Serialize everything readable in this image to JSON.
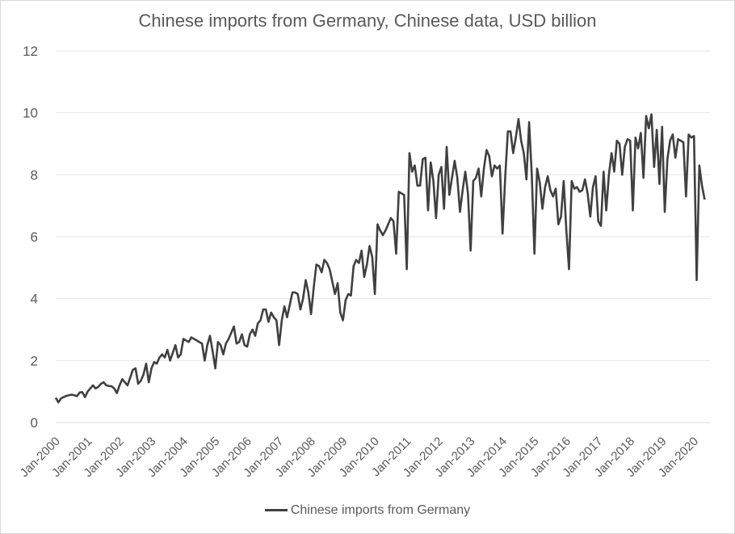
{
  "chart_data": {
    "type": "line",
    "title": "Chinese imports from Germany, Chinese data, USD billion",
    "xlabel": "",
    "ylabel": "",
    "ylim": [
      0,
      12
    ],
    "yticks": [
      0,
      2,
      4,
      6,
      8,
      10,
      12
    ],
    "grid": true,
    "legend_position": "bottom",
    "x_tick_labels": [
      "Jan-2000",
      "Jan-2001",
      "Jan-2002",
      "Jan-2003",
      "Jan-2004",
      "Jan-2005",
      "Jan-2006",
      "Jan-2007",
      "Jan-2008",
      "Jan-2009",
      "Jan-2010",
      "Jan-2011",
      "Jan-2012",
      "Jan-2013",
      "Jan-2014",
      "Jan-2015",
      "Jan-2016",
      "Jan-2017",
      "Jan-2018",
      "Jan-2019",
      "Jan-2020"
    ],
    "x_start": "Jan-2000",
    "x_frequency": "monthly",
    "series": [
      {
        "name": "Chinese imports from Germany",
        "color": "#404040",
        "values": [
          0.8,
          0.65,
          0.78,
          0.82,
          0.86,
          0.88,
          0.9,
          0.88,
          0.85,
          0.97,
          0.98,
          0.82,
          1.0,
          1.1,
          1.2,
          1.1,
          1.15,
          1.25,
          1.3,
          1.2,
          1.18,
          1.17,
          1.1,
          0.95,
          1.2,
          1.4,
          1.3,
          1.2,
          1.45,
          1.7,
          1.75,
          1.25,
          1.35,
          1.55,
          1.9,
          1.3,
          1.75,
          1.95,
          1.9,
          2.1,
          2.2,
          2.1,
          2.35,
          2.0,
          2.25,
          2.5,
          2.1,
          2.2,
          2.7,
          2.65,
          2.6,
          2.75,
          2.7,
          2.65,
          2.6,
          2.55,
          2.0,
          2.5,
          2.8,
          2.3,
          1.75,
          2.6,
          2.5,
          2.2,
          2.55,
          2.7,
          2.9,
          3.1,
          2.55,
          2.6,
          2.85,
          2.5,
          2.45,
          2.85,
          3.0,
          2.8,
          3.2,
          3.3,
          3.65,
          3.65,
          3.25,
          3.55,
          3.4,
          3.3,
          2.5,
          3.3,
          3.75,
          3.4,
          3.8,
          4.2,
          4.2,
          4.15,
          3.65,
          4.0,
          4.6,
          4.2,
          3.5,
          4.35,
          5.1,
          5.05,
          4.85,
          5.25,
          5.15,
          4.95,
          4.55,
          4.15,
          4.5,
          3.55,
          3.3,
          3.95,
          4.15,
          4.1,
          5.05,
          5.25,
          5.15,
          5.55,
          4.7,
          5.1,
          5.7,
          5.35,
          4.15,
          6.4,
          6.2,
          6.05,
          6.2,
          6.4,
          6.6,
          6.5,
          5.45,
          7.45,
          7.4,
          7.35,
          4.95,
          8.7,
          8.1,
          8.3,
          7.65,
          7.65,
          8.5,
          8.55,
          6.85,
          8.4,
          7.8,
          6.6,
          8.0,
          8.25,
          6.9,
          8.9,
          7.35,
          7.9,
          8.45,
          7.9,
          6.8,
          7.5,
          8.1,
          7.4,
          5.55,
          7.8,
          7.9,
          8.2,
          7.3,
          8.2,
          8.8,
          8.6,
          7.95,
          8.3,
          8.2,
          8.3,
          6.1,
          7.9,
          9.4,
          9.4,
          8.7,
          9.2,
          9.8,
          9.1,
          8.7,
          7.85,
          9.7,
          8.0,
          5.45,
          8.2,
          7.75,
          6.9,
          7.6,
          7.95,
          7.5,
          7.3,
          7.55,
          6.4,
          6.65,
          7.8,
          6.2,
          4.95,
          7.8,
          7.55,
          7.6,
          7.45,
          7.5,
          7.85,
          7.4,
          6.65,
          7.6,
          7.95,
          6.5,
          6.35,
          8.1,
          6.85,
          8.0,
          8.7,
          8.1,
          9.1,
          9.0,
          8.0,
          8.9,
          9.15,
          9.1,
          6.85,
          9.2,
          8.85,
          9.35,
          7.9,
          9.9,
          9.5,
          9.95,
          8.25,
          9.45,
          7.7,
          9.55,
          6.8,
          8.5,
          9.1,
          9.3,
          8.55,
          9.15,
          9.1,
          9.05,
          7.3,
          9.3,
          9.2,
          9.25,
          4.6,
          8.3,
          7.65,
          7.2
        ]
      }
    ]
  }
}
